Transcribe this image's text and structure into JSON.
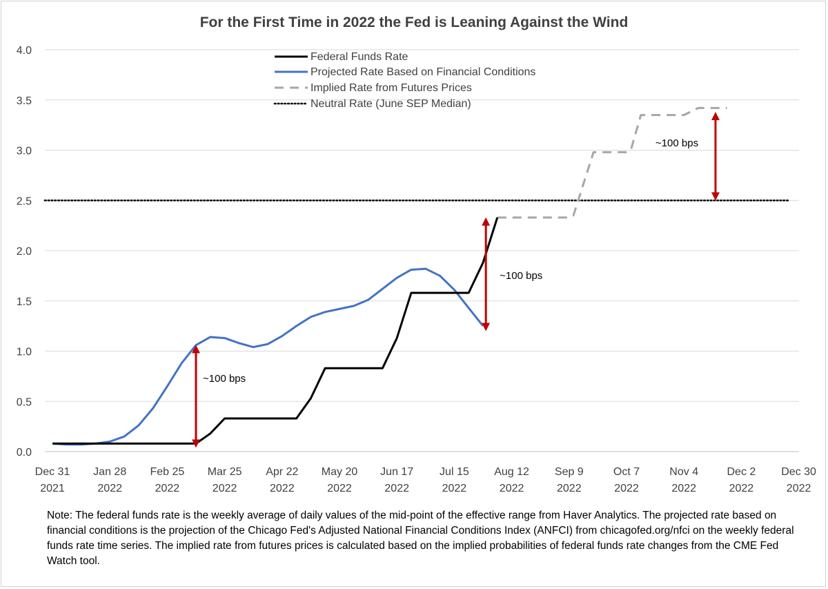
{
  "chart_data": {
    "type": "line",
    "title": "For the First Time in 2022 the Fed is Leaning Against the Wind",
    "ylim": [
      0,
      4.0
    ],
    "y_ticks": [
      "0.0",
      "0.5",
      "1.0",
      "1.5",
      "2.0",
      "2.5",
      "3.0",
      "3.5",
      "4.0"
    ],
    "x_ticks": [
      {
        "month": "Dec 31",
        "year": "2021"
      },
      {
        "month": "Jan 28",
        "year": "2022"
      },
      {
        "month": "Feb 25",
        "year": "2022"
      },
      {
        "month": "Mar 25",
        "year": "2022"
      },
      {
        "month": "Apr 22",
        "year": "2022"
      },
      {
        "month": "May 20",
        "year": "2022"
      },
      {
        "month": "Jun 17",
        "year": "2022"
      },
      {
        "month": "Jul 15",
        "year": "2022"
      },
      {
        "month": "Aug 12",
        "year": "2022"
      },
      {
        "month": "Sep 9",
        "year": "2022"
      },
      {
        "month": "Oct 7",
        "year": "2022"
      },
      {
        "month": "Nov 4",
        "year": "2022"
      },
      {
        "month": "Dec 2",
        "year": "2022"
      },
      {
        "month": "Dec 30",
        "year": "2022"
      }
    ],
    "x_unit": "weeks after Dec 31, 2021",
    "grid": true,
    "legend_position": "top-center",
    "series": [
      {
        "name": "Federal Funds Rate",
        "color": "#000000",
        "style": "solid",
        "points": [
          [
            0,
            0.08
          ],
          [
            1,
            0.08
          ],
          [
            2,
            0.08
          ],
          [
            3,
            0.08
          ],
          [
            4,
            0.08
          ],
          [
            5,
            0.08
          ],
          [
            6,
            0.08
          ],
          [
            7,
            0.08
          ],
          [
            8,
            0.08
          ],
          [
            9,
            0.08
          ],
          [
            10,
            0.08
          ],
          [
            11,
            0.18
          ],
          [
            12,
            0.33
          ],
          [
            13,
            0.33
          ],
          [
            14,
            0.33
          ],
          [
            15,
            0.33
          ],
          [
            16,
            0.33
          ],
          [
            17,
            0.33
          ],
          [
            18,
            0.53
          ],
          [
            19,
            0.83
          ],
          [
            20,
            0.83
          ],
          [
            21,
            0.83
          ],
          [
            22,
            0.83
          ],
          [
            23,
            0.83
          ],
          [
            24,
            1.13
          ],
          [
            25,
            1.58
          ],
          [
            26,
            1.58
          ],
          [
            27,
            1.58
          ],
          [
            28,
            1.58
          ],
          [
            29,
            1.58
          ],
          [
            30,
            1.88
          ],
          [
            31,
            2.33
          ]
        ]
      },
      {
        "name": "Projected Rate Based on Financial Conditions",
        "color": "#4472c4",
        "style": "solid",
        "points": [
          [
            0,
            0.08
          ],
          [
            1,
            0.07
          ],
          [
            2,
            0.07
          ],
          [
            3,
            0.08
          ],
          [
            4,
            0.1
          ],
          [
            5,
            0.15
          ],
          [
            6,
            0.26
          ],
          [
            7,
            0.43
          ],
          [
            8,
            0.65
          ],
          [
            9,
            0.88
          ],
          [
            10,
            1.06
          ],
          [
            11,
            1.14
          ],
          [
            12,
            1.13
          ],
          [
            13,
            1.08
          ],
          [
            14,
            1.04
          ],
          [
            15,
            1.07
          ],
          [
            16,
            1.15
          ],
          [
            17,
            1.25
          ],
          [
            18,
            1.34
          ],
          [
            19,
            1.39
          ],
          [
            20,
            1.42
          ],
          [
            21,
            1.45
          ],
          [
            22,
            1.51
          ],
          [
            23,
            1.62
          ],
          [
            24,
            1.73
          ],
          [
            25,
            1.81
          ],
          [
            26,
            1.82
          ],
          [
            27,
            1.75
          ],
          [
            28,
            1.61
          ],
          [
            29,
            1.43
          ],
          [
            30,
            1.25
          ]
        ]
      },
      {
        "name": "Implied Rate from Futures Prices",
        "color": "#a6a6a6",
        "style": "dashed",
        "points": [
          [
            31,
            2.33
          ],
          [
            36,
            2.33
          ],
          [
            36.3,
            2.35
          ],
          [
            37.7,
            2.98
          ],
          [
            38,
            2.98
          ],
          [
            40,
            2.98
          ],
          [
            40.3,
            3.0
          ],
          [
            41,
            3.35
          ],
          [
            44,
            3.35
          ],
          [
            45,
            3.42
          ],
          [
            47,
            3.42
          ]
        ]
      },
      {
        "name": "Neutral Rate (June SEP Median)",
        "color": "#000000",
        "style": "dotted",
        "points": [
          [
            0,
            2.5
          ],
          [
            47,
            2.5
          ]
        ]
      }
    ],
    "annotations": [
      {
        "label": "~100 bps",
        "x": 10,
        "y_from": 0.08,
        "y_to": 1.02
      },
      {
        "label": "~100 bps",
        "x": 30.2,
        "y_from": 1.24,
        "y_to": 2.29
      },
      {
        "label": "~100 bps",
        "x": 46.2,
        "y_from": 2.54,
        "y_to": 3.34
      }
    ],
    "note": "Note: The federal funds rate is the weekly average of daily values of the mid-point of the effective range from Haver Analytics. The projected rate based on financial conditions is the projection of the Chicago Fed's Adjusted National Financial Conditions Index (ANFCI) from chicagofed.org/nfci on the weekly federal funds rate time series. The implied rate from futures prices is calculated based on the implied probabilities of federal funds rate changes from the CME Fed Watch tool."
  }
}
